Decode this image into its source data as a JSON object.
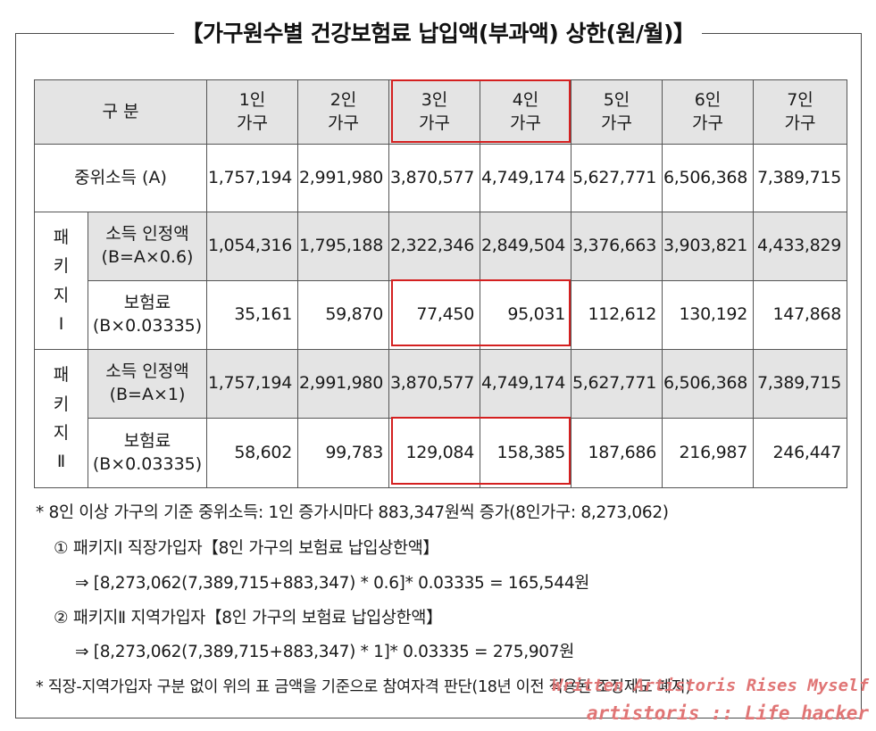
{
  "title": "【가구원수별  건강보험료  납입액(부과액)  상한(원/월)】",
  "header": {
    "category": "구  분",
    "cols": [
      [
        "1인",
        "가구"
      ],
      [
        "2인",
        "가구"
      ],
      [
        "3인",
        "가구"
      ],
      [
        "4인",
        "가구"
      ],
      [
        "5인",
        "가구"
      ],
      [
        "6인",
        "가구"
      ],
      [
        "7인",
        "가구"
      ]
    ]
  },
  "median": {
    "label": "중위소득 (A)",
    "values": [
      "1,757,194",
      "2,991,980",
      "3,870,577",
      "4,749,174",
      "5,627,771",
      "6,506,368",
      "7,389,715"
    ]
  },
  "package1": {
    "side": [
      "패",
      "키",
      "지",
      "Ⅰ"
    ],
    "income_label": [
      "소득 인정액",
      "(B=A×0.6)"
    ],
    "income_values": [
      "1,054,316",
      "1,795,188",
      "2,322,346",
      "2,849,504",
      "3,376,663",
      "3,903,821",
      "4,433,829"
    ],
    "premium_label": [
      "보험료",
      "(B×0.03335)"
    ],
    "premium_values": [
      "35,161",
      "59,870",
      "77,450",
      "95,031",
      "112,612",
      "130,192",
      "147,868"
    ]
  },
  "package2": {
    "side": [
      "패",
      "키",
      "지",
      "Ⅱ"
    ],
    "income_label": [
      "소득 인정액",
      "(B=A×1)"
    ],
    "income_values": [
      "1,757,194",
      "2,991,980",
      "3,870,577",
      "4,749,174",
      "5,627,771",
      "6,506,368",
      "7,389,715"
    ],
    "premium_label": [
      "보험료",
      "(B×0.03335)"
    ],
    "premium_values": [
      "58,602",
      "99,783",
      "129,084",
      "158,385",
      "187,686",
      "216,987",
      "246,447"
    ]
  },
  "notes": {
    "note1": "* 8인 이상 가구의 기준 중위소득: 1인 증가시마다 883,347원씩 증가(8인가구: 8,273,062)",
    "item1_title": "① 패키지Ⅰ  직장가입자【8인 가구의 보험료 납입상한액】",
    "item1_formula": "⇒ [8,273,062(7,389,715+883,347) * 0.6]* 0.03335 = 165,544원",
    "item2_title": "② 패키지Ⅱ  지역가입자【8인 가구의 보험료 납입상한액】",
    "item2_formula": "⇒ [8,273,062(7,389,715+883,347) * 1]* 0.03335 = 275,907원",
    "note2": "* 직장-지역가입자 구분 없이 위의 표 금액을 기준으로 참여자격 판단(18년 이전 적용된 조정제도 폐지)"
  },
  "watermark": {
    "line1": "Written Artistoris Rises Myself",
    "line2": "artistoris :: Life hacker"
  },
  "colors": {
    "highlight": "#d42020",
    "shade": "#e4e4e4",
    "watermark": "#e07575"
  }
}
